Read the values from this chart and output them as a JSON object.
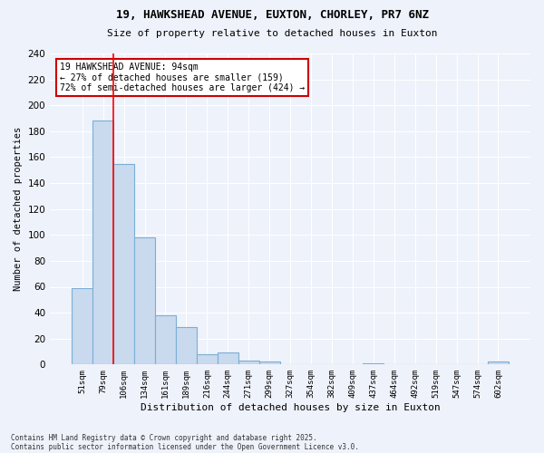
{
  "title1": "19, HAWKSHEAD AVENUE, EUXTON, CHORLEY, PR7 6NZ",
  "title2": "Size of property relative to detached houses in Euxton",
  "xlabel": "Distribution of detached houses by size in Euxton",
  "ylabel": "Number of detached properties",
  "categories": [
    "51sqm",
    "79sqm",
    "106sqm",
    "134sqm",
    "161sqm",
    "189sqm",
    "216sqm",
    "244sqm",
    "271sqm",
    "299sqm",
    "327sqm",
    "354sqm",
    "382sqm",
    "409sqm",
    "437sqm",
    "464sqm",
    "492sqm",
    "519sqm",
    "547sqm",
    "574sqm",
    "602sqm"
  ],
  "values": [
    59,
    188,
    155,
    98,
    38,
    29,
    8,
    9,
    3,
    2,
    0,
    0,
    0,
    0,
    1,
    0,
    0,
    0,
    0,
    0,
    2
  ],
  "bar_color": "#c9d9ee",
  "bar_edge_color": "#7bafd4",
  "background_color": "#eef2fb",
  "grid_color": "#ffffff",
  "red_line_x": 1.5,
  "annotation_line1": "19 HAWKSHEAD AVENUE: 94sqm",
  "annotation_line2": "← 27% of detached houses are smaller (159)",
  "annotation_line3": "72% of semi-detached houses are larger (424) →",
  "annotation_box_color": "#ffffff",
  "annotation_box_edge": "#cc0000",
  "ylim": [
    0,
    240
  ],
  "yticks": [
    0,
    20,
    40,
    60,
    80,
    100,
    120,
    140,
    160,
    180,
    200,
    220,
    240
  ],
  "footer1": "Contains HM Land Registry data © Crown copyright and database right 2025.",
  "footer2": "Contains public sector information licensed under the Open Government Licence v3.0."
}
